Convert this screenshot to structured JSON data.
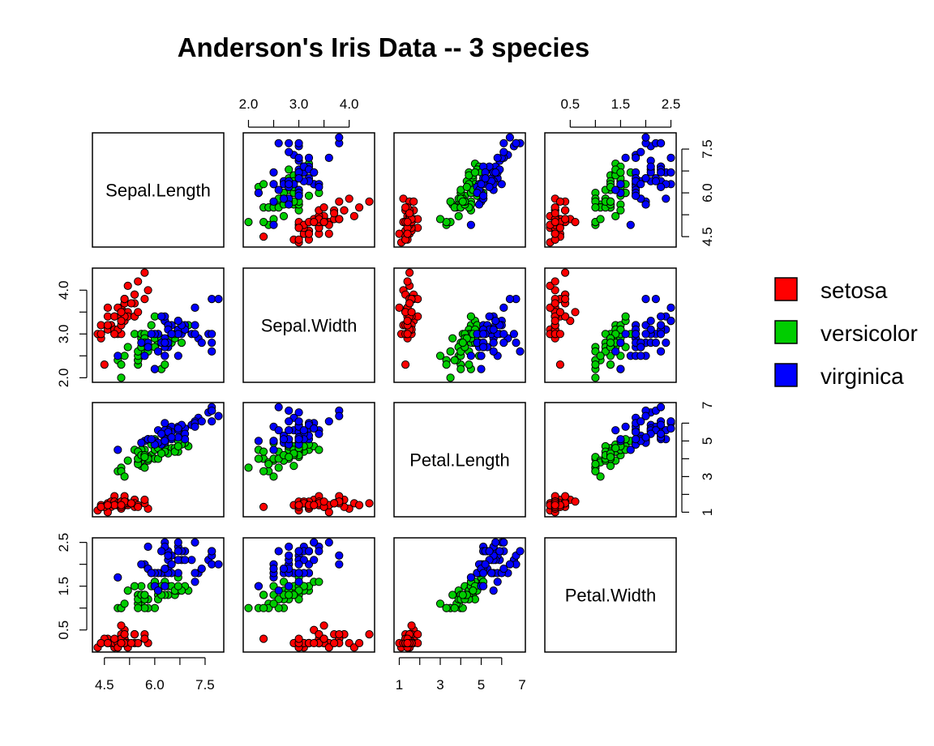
{
  "chart_data": {
    "type": "scatter",
    "matrix": true,
    "title": "Anderson's Iris Data -- 3 species",
    "variables": [
      "Sepal.Length",
      "Sepal.Width",
      "Petal.Length",
      "Petal.Width"
    ],
    "ranges": {
      "Sepal.Length": [
        4.3,
        7.9
      ],
      "Sepal.Width": [
        2.0,
        4.4
      ],
      "Petal.Length": [
        1.0,
        6.9
      ],
      "Petal.Width": [
        0.1,
        2.5
      ]
    },
    "tick_labels": {
      "Sepal.Length": [
        "4.5",
        "6.0",
        "7.5"
      ],
      "Sepal.Width": [
        "2.0",
        "3.0",
        "4.0"
      ],
      "Petal.Length": [
        "1",
        "3",
        "5",
        "7"
      ],
      "Petal.Width": [
        "0.5",
        "1.5",
        "2.5"
      ]
    },
    "grid": false,
    "legend_position": "right",
    "series": [
      {
        "name": "setosa",
        "color": "#ff0000",
        "values": [
          [
            5.1,
            3.5,
            1.4,
            0.2
          ],
          [
            4.9,
            3.0,
            1.4,
            0.2
          ],
          [
            4.7,
            3.2,
            1.3,
            0.2
          ],
          [
            4.6,
            3.1,
            1.5,
            0.2
          ],
          [
            5.0,
            3.6,
            1.4,
            0.2
          ],
          [
            5.4,
            3.9,
            1.7,
            0.4
          ],
          [
            4.6,
            3.4,
            1.4,
            0.3
          ],
          [
            5.0,
            3.4,
            1.5,
            0.2
          ],
          [
            4.4,
            2.9,
            1.4,
            0.2
          ],
          [
            4.9,
            3.1,
            1.5,
            0.1
          ],
          [
            5.4,
            3.7,
            1.5,
            0.2
          ],
          [
            4.8,
            3.4,
            1.6,
            0.2
          ],
          [
            4.8,
            3.0,
            1.4,
            0.1
          ],
          [
            4.3,
            3.0,
            1.1,
            0.1
          ],
          [
            5.8,
            4.0,
            1.2,
            0.2
          ],
          [
            5.7,
            4.4,
            1.5,
            0.4
          ],
          [
            5.4,
            3.9,
            1.3,
            0.4
          ],
          [
            5.1,
            3.5,
            1.4,
            0.3
          ],
          [
            5.7,
            3.8,
            1.7,
            0.3
          ],
          [
            5.1,
            3.8,
            1.5,
            0.3
          ],
          [
            5.4,
            3.4,
            1.7,
            0.2
          ],
          [
            5.1,
            3.7,
            1.5,
            0.4
          ],
          [
            4.6,
            3.6,
            1.0,
            0.2
          ],
          [
            5.1,
            3.3,
            1.7,
            0.5
          ],
          [
            4.8,
            3.4,
            1.9,
            0.2
          ],
          [
            5.0,
            3.0,
            1.6,
            0.2
          ],
          [
            5.0,
            3.4,
            1.6,
            0.4
          ],
          [
            5.2,
            3.5,
            1.5,
            0.2
          ],
          [
            5.2,
            3.4,
            1.4,
            0.2
          ],
          [
            4.7,
            3.2,
            1.6,
            0.2
          ],
          [
            4.8,
            3.1,
            1.6,
            0.2
          ],
          [
            5.4,
            3.4,
            1.5,
            0.4
          ],
          [
            5.2,
            4.1,
            1.5,
            0.1
          ],
          [
            5.5,
            4.2,
            1.4,
            0.2
          ],
          [
            4.9,
            3.1,
            1.5,
            0.2
          ],
          [
            5.0,
            3.2,
            1.2,
            0.2
          ],
          [
            5.5,
            3.5,
            1.3,
            0.2
          ],
          [
            4.9,
            3.6,
            1.4,
            0.1
          ],
          [
            4.4,
            3.0,
            1.3,
            0.2
          ],
          [
            5.1,
            3.4,
            1.5,
            0.2
          ],
          [
            5.0,
            3.5,
            1.3,
            0.3
          ],
          [
            4.5,
            2.3,
            1.3,
            0.3
          ],
          [
            4.4,
            3.2,
            1.3,
            0.2
          ],
          [
            5.0,
            3.5,
            1.6,
            0.6
          ],
          [
            5.1,
            3.8,
            1.9,
            0.4
          ],
          [
            4.8,
            3.0,
            1.4,
            0.3
          ],
          [
            5.1,
            3.8,
            1.6,
            0.2
          ],
          [
            4.6,
            3.2,
            1.4,
            0.2
          ],
          [
            5.3,
            3.7,
            1.5,
            0.2
          ],
          [
            5.0,
            3.3,
            1.4,
            0.2
          ]
        ]
      },
      {
        "name": "versicolor",
        "color": "#00cd00",
        "values": [
          [
            7.0,
            3.2,
            4.7,
            1.4
          ],
          [
            6.4,
            3.2,
            4.5,
            1.5
          ],
          [
            6.9,
            3.1,
            4.9,
            1.5
          ],
          [
            5.5,
            2.3,
            4.0,
            1.3
          ],
          [
            6.5,
            2.8,
            4.6,
            1.5
          ],
          [
            5.7,
            2.8,
            4.5,
            1.3
          ],
          [
            6.3,
            3.3,
            4.7,
            1.6
          ],
          [
            4.9,
            2.4,
            3.3,
            1.0
          ],
          [
            6.6,
            2.9,
            4.6,
            1.3
          ],
          [
            5.2,
            2.7,
            3.9,
            1.4
          ],
          [
            5.0,
            2.0,
            3.5,
            1.0
          ],
          [
            5.9,
            3.0,
            4.2,
            1.5
          ],
          [
            6.0,
            2.2,
            4.0,
            1.0
          ],
          [
            6.1,
            2.9,
            4.7,
            1.4
          ],
          [
            5.6,
            2.9,
            3.6,
            1.3
          ],
          [
            6.7,
            3.1,
            4.4,
            1.4
          ],
          [
            5.6,
            3.0,
            4.5,
            1.5
          ],
          [
            5.8,
            2.7,
            4.1,
            1.0
          ],
          [
            6.2,
            2.2,
            4.5,
            1.5
          ],
          [
            5.6,
            2.5,
            3.9,
            1.1
          ],
          [
            5.9,
            3.2,
            4.8,
            1.8
          ],
          [
            6.1,
            2.8,
            4.0,
            1.3
          ],
          [
            6.3,
            2.5,
            4.9,
            1.5
          ],
          [
            6.1,
            2.8,
            4.7,
            1.2
          ],
          [
            6.4,
            2.9,
            4.3,
            1.3
          ],
          [
            6.6,
            3.0,
            4.4,
            1.4
          ],
          [
            6.8,
            2.8,
            4.8,
            1.4
          ],
          [
            6.7,
            3.0,
            5.0,
            1.7
          ],
          [
            6.0,
            2.9,
            4.5,
            1.5
          ],
          [
            5.7,
            2.6,
            3.5,
            1.0
          ],
          [
            5.5,
            2.4,
            3.8,
            1.1
          ],
          [
            5.5,
            2.4,
            3.7,
            1.0
          ],
          [
            5.8,
            2.7,
            3.9,
            1.2
          ],
          [
            6.0,
            2.7,
            5.1,
            1.6
          ],
          [
            5.4,
            3.0,
            4.5,
            1.5
          ],
          [
            6.0,
            3.4,
            4.5,
            1.6
          ],
          [
            6.7,
            3.1,
            4.7,
            1.5
          ],
          [
            6.3,
            2.3,
            4.4,
            1.3
          ],
          [
            5.6,
            3.0,
            4.1,
            1.3
          ],
          [
            5.5,
            2.5,
            4.0,
            1.3
          ],
          [
            5.5,
            2.6,
            4.4,
            1.2
          ],
          [
            6.1,
            3.0,
            4.6,
            1.4
          ],
          [
            5.8,
            2.6,
            4.0,
            1.2
          ],
          [
            5.0,
            2.3,
            3.3,
            1.0
          ],
          [
            5.6,
            2.7,
            4.2,
            1.3
          ],
          [
            5.7,
            3.0,
            4.2,
            1.2
          ],
          [
            5.7,
            2.9,
            4.2,
            1.3
          ],
          [
            6.2,
            2.9,
            4.3,
            1.3
          ],
          [
            5.1,
            2.5,
            3.0,
            1.1
          ],
          [
            5.7,
            2.8,
            4.1,
            1.3
          ]
        ]
      },
      {
        "name": "virginica",
        "color": "#0000ff",
        "values": [
          [
            6.3,
            3.3,
            6.0,
            2.5
          ],
          [
            5.8,
            2.7,
            5.1,
            1.9
          ],
          [
            7.1,
            3.0,
            5.9,
            2.1
          ],
          [
            6.3,
            2.9,
            5.6,
            1.8
          ],
          [
            6.5,
            3.0,
            5.8,
            2.2
          ],
          [
            7.6,
            3.0,
            6.6,
            2.1
          ],
          [
            4.9,
            2.5,
            4.5,
            1.7
          ],
          [
            7.3,
            2.9,
            6.3,
            1.8
          ],
          [
            6.7,
            2.5,
            5.8,
            1.8
          ],
          [
            7.2,
            3.6,
            6.1,
            2.5
          ],
          [
            6.5,
            3.2,
            5.1,
            2.0
          ],
          [
            6.4,
            2.7,
            5.3,
            1.9
          ],
          [
            6.8,
            3.0,
            5.5,
            2.1
          ],
          [
            5.7,
            2.5,
            5.0,
            2.0
          ],
          [
            5.8,
            2.8,
            5.1,
            2.4
          ],
          [
            6.4,
            3.2,
            5.3,
            2.3
          ],
          [
            6.5,
            3.0,
            5.5,
            1.8
          ],
          [
            7.7,
            3.8,
            6.7,
            2.2
          ],
          [
            7.7,
            2.6,
            6.9,
            2.3
          ],
          [
            6.0,
            2.2,
            5.0,
            1.5
          ],
          [
            6.9,
            3.2,
            5.7,
            2.3
          ],
          [
            5.6,
            2.8,
            4.9,
            2.0
          ],
          [
            7.7,
            2.8,
            6.7,
            2.0
          ],
          [
            6.3,
            2.7,
            4.9,
            1.8
          ],
          [
            6.7,
            3.3,
            5.7,
            2.1
          ],
          [
            7.2,
            3.2,
            6.0,
            1.8
          ],
          [
            6.2,
            2.8,
            4.8,
            1.8
          ],
          [
            6.1,
            3.0,
            4.9,
            1.8
          ],
          [
            6.4,
            2.8,
            5.6,
            2.1
          ],
          [
            7.2,
            3.0,
            5.8,
            1.6
          ],
          [
            7.4,
            2.8,
            6.1,
            1.9
          ],
          [
            7.9,
            3.8,
            6.4,
            2.0
          ],
          [
            6.4,
            2.8,
            5.6,
            2.2
          ],
          [
            6.3,
            2.8,
            5.1,
            1.5
          ],
          [
            6.1,
            2.6,
            5.6,
            1.4
          ],
          [
            7.7,
            3.0,
            6.1,
            2.3
          ],
          [
            6.3,
            3.4,
            5.6,
            2.4
          ],
          [
            6.4,
            3.1,
            5.5,
            1.8
          ],
          [
            6.0,
            3.0,
            4.8,
            1.8
          ],
          [
            6.9,
            3.1,
            5.4,
            2.1
          ],
          [
            6.7,
            3.1,
            5.6,
            2.4
          ],
          [
            6.9,
            3.1,
            5.1,
            2.3
          ],
          [
            5.8,
            2.7,
            5.1,
            1.9
          ],
          [
            6.8,
            3.2,
            5.9,
            2.3
          ],
          [
            6.7,
            3.3,
            5.7,
            2.5
          ],
          [
            6.7,
            3.0,
            5.2,
            2.3
          ],
          [
            6.3,
            2.5,
            5.0,
            1.9
          ],
          [
            6.5,
            3.0,
            5.2,
            2.0
          ],
          [
            6.2,
            3.4,
            5.4,
            2.3
          ],
          [
            5.9,
            3.0,
            5.1,
            1.8
          ]
        ]
      }
    ]
  }
}
